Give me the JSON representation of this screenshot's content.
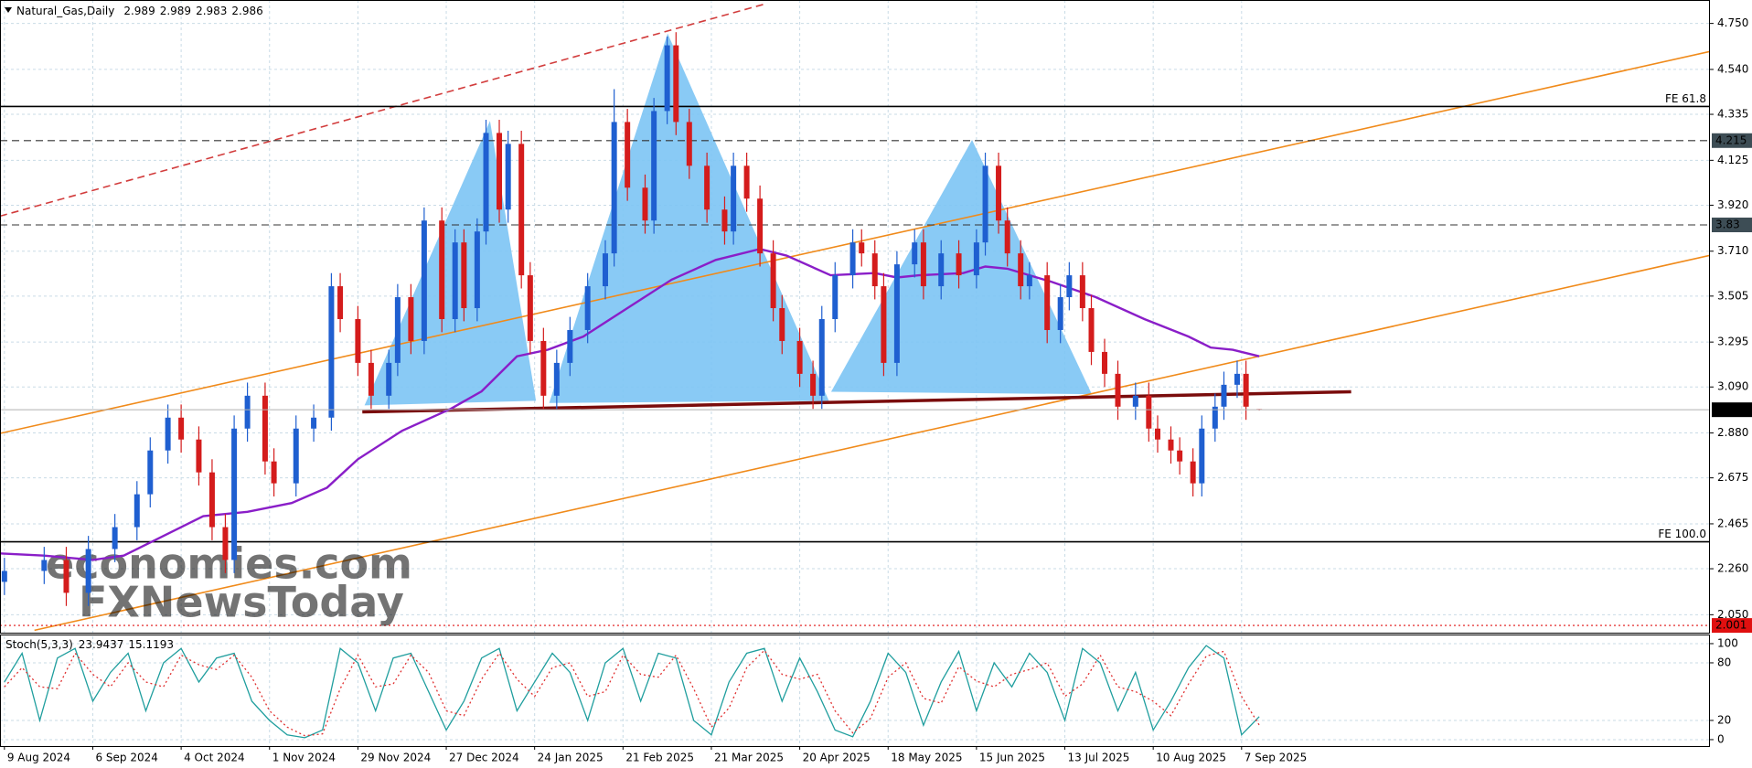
{
  "chart_data": [
    {
      "type": "candlestick",
      "title": "Natural_Gas,Daily",
      "x": [
        0,
        9,
        14,
        19,
        25,
        30,
        33,
        37,
        40,
        44,
        47,
        50,
        52,
        55,
        59,
        61,
        66,
        70,
        74,
        76,
        80,
        83,
        87,
        89,
        92,
        95,
        99,
        102,
        104,
        107,
        109,
        112,
        114,
        117,
        119,
        122,
        125,
        128,
        132,
        136,
        138,
        141,
        145,
        147,
        150,
        152,
        155,
        159,
        163,
        165,
        168,
        171,
        174,
        176,
        180,
        183,
        185,
        188,
        192,
        194,
        197,
        199,
        202,
        206,
        208,
        212,
        216,
        220,
        222,
        225,
        227,
        230,
        232,
        236,
        239,
        241,
        244,
        246,
        249,
        252,
        256,
        259,
        261,
        264,
        266,
        269,
        271,
        274,
        276,
        279,
        281,
        284
      ],
      "open": [
        2.2,
        2.25,
        2.3,
        2.15,
        2.35,
        2.45,
        2.6,
        2.8,
        2.95,
        2.85,
        2.7,
        2.45,
        2.3,
        2.9,
        3.05,
        2.75,
        2.65,
        2.9,
        2.95,
        3.55,
        3.4,
        3.2,
        3.05,
        3.2,
        3.5,
        3.3,
        3.85,
        3.4,
        3.75,
        3.45,
        3.8,
        4.25,
        3.9,
        4.2,
        3.6,
        3.3,
        3.05,
        3.2,
        3.35,
        3.55,
        3.7,
        4.3,
        4.0,
        3.85,
        4.35,
        4.65,
        4.3,
        4.1,
        3.9,
        3.8,
        4.1,
        3.95,
        3.7,
        3.45,
        3.3,
        3.15,
        3.05,
        3.4,
        3.6,
        3.75,
        3.7,
        3.55,
        3.2,
        3.65,
        3.75,
        3.55,
        3.7,
        3.6,
        3.75,
        4.1,
        3.85,
        3.7,
        3.55,
        3.6,
        3.35,
        3.5,
        3.6,
        3.45,
        3.25,
        3.15,
        3.0,
        3.05,
        2.9,
        2.85,
        2.8,
        2.75,
        2.65,
        2.9,
        3.0,
        3.1,
        3.15,
        2.989
      ],
      "high": [
        2.31,
        2.36,
        2.36,
        2.41,
        2.51,
        2.66,
        2.86,
        3.01,
        3.01,
        2.91,
        2.76,
        2.51,
        2.96,
        3.11,
        3.11,
        2.81,
        2.96,
        3.01,
        3.61,
        3.61,
        3.46,
        3.26,
        3.26,
        3.56,
        3.56,
        3.91,
        3.91,
        3.81,
        3.81,
        3.86,
        4.31,
        4.31,
        4.26,
        4.26,
        3.66,
        3.36,
        3.26,
        3.41,
        3.61,
        3.76,
        4.45,
        4.36,
        4.06,
        4.41,
        4.69,
        4.71,
        4.36,
        4.16,
        3.96,
        4.16,
        4.16,
        4.01,
        3.76,
        3.51,
        3.36,
        3.21,
        3.46,
        3.66,
        3.81,
        3.81,
        3.76,
        3.61,
        3.71,
        3.81,
        3.81,
        3.76,
        3.76,
        3.81,
        4.16,
        4.16,
        3.91,
        3.76,
        3.66,
        3.66,
        3.56,
        3.66,
        3.66,
        3.51,
        3.31,
        3.21,
        3.11,
        3.11,
        2.96,
        2.91,
        2.86,
        2.81,
        2.96,
        3.06,
        3.16,
        3.21,
        3.21,
        2.989
      ],
      "low": [
        2.14,
        2.19,
        2.09,
        2.09,
        2.29,
        2.39,
        2.54,
        2.74,
        2.79,
        2.64,
        2.39,
        2.24,
        2.24,
        2.84,
        2.69,
        2.59,
        2.59,
        2.84,
        2.89,
        3.34,
        3.14,
        2.99,
        2.99,
        3.14,
        3.24,
        3.24,
        3.34,
        3.34,
        3.39,
        3.39,
        3.74,
        3.84,
        3.84,
        3.54,
        3.24,
        2.99,
        2.99,
        3.14,
        3.29,
        3.49,
        3.64,
        3.94,
        3.79,
        3.79,
        4.29,
        4.24,
        4.04,
        3.84,
        3.74,
        3.74,
        3.89,
        3.64,
        3.39,
        3.24,
        3.09,
        2.99,
        2.99,
        3.34,
        3.54,
        3.64,
        3.49,
        3.14,
        3.14,
        3.59,
        3.49,
        3.49,
        3.54,
        3.54,
        3.69,
        3.79,
        3.64,
        3.49,
        3.49,
        3.29,
        3.29,
        3.44,
        3.39,
        3.19,
        3.09,
        2.94,
        2.94,
        2.84,
        2.79,
        2.74,
        2.69,
        2.59,
        2.59,
        2.84,
        2.94,
        3.04,
        2.94,
        2.983
      ],
      "close": [
        2.25,
        2.3,
        2.15,
        2.35,
        2.45,
        2.6,
        2.8,
        2.95,
        2.85,
        2.7,
        2.45,
        2.3,
        2.9,
        3.05,
        2.75,
        2.65,
        2.9,
        2.95,
        3.55,
        3.4,
        3.2,
        3.05,
        3.2,
        3.5,
        3.3,
        3.85,
        3.4,
        3.75,
        3.45,
        3.8,
        4.25,
        3.9,
        4.2,
        3.6,
        3.3,
        3.05,
        3.2,
        3.35,
        3.55,
        3.7,
        4.3,
        4.0,
        3.85,
        4.35,
        4.65,
        4.3,
        4.1,
        3.9,
        3.8,
        4.1,
        3.95,
        3.7,
        3.45,
        3.3,
        3.15,
        3.05,
        3.4,
        3.6,
        3.75,
        3.7,
        3.55,
        3.2,
        3.65,
        3.75,
        3.55,
        3.7,
        3.6,
        3.75,
        4.1,
        3.85,
        3.7,
        3.55,
        3.6,
        3.35,
        3.5,
        3.6,
        3.45,
        3.25,
        3.15,
        3.0,
        3.05,
        2.9,
        2.85,
        2.8,
        2.75,
        2.65,
        2.9,
        3.0,
        3.1,
        3.15,
        3.0,
        2.986
      ],
      "up_color": "#1f5fd0",
      "down_color": "#d41c1c",
      "xlim": [
        -1,
        386
      ],
      "ylim": [
        1.968,
        4.857
      ],
      "yticks": [
        {
          "value": 4.75,
          "label": "4.750"
        },
        {
          "value": 4.54,
          "label": "4.540"
        },
        {
          "value": 4.335,
          "label": "4.335"
        },
        {
          "value": 4.125,
          "label": "4.125"
        },
        {
          "value": 3.92,
          "label": "3.920"
        },
        {
          "value": 3.71,
          "label": "3.710"
        },
        {
          "value": 3.505,
          "label": "3.505"
        },
        {
          "value": 3.295,
          "label": "3.295"
        },
        {
          "value": 3.09,
          "label": "3.090"
        },
        {
          "value": 2.88,
          "label": "2.880"
        },
        {
          "value": 2.675,
          "label": "2.675"
        },
        {
          "value": 2.465,
          "label": "2.465"
        },
        {
          "value": 2.26,
          "label": "2.260"
        },
        {
          "value": 2.05,
          "label": "2.050"
        }
      ],
      "grid": true,
      "ma": {
        "color": "#8a1ec8",
        "x": [
          -1,
          9,
          20,
          27,
          35,
          45,
          55,
          65,
          73,
          80,
          90,
          101,
          108,
          116,
          123,
          131,
          141,
          151,
          161,
          171,
          177,
          187,
          197,
          202,
          207,
          217,
          222,
          227,
          237,
          247,
          258,
          268,
          273,
          278,
          284
        ],
        "values": [
          2.33,
          2.32,
          2.3,
          2.32,
          2.4,
          2.5,
          2.52,
          2.56,
          2.63,
          2.76,
          2.89,
          2.99,
          3.07,
          3.23,
          3.26,
          3.32,
          3.45,
          3.58,
          3.67,
          3.72,
          3.69,
          3.6,
          3.61,
          3.59,
          3.6,
          3.61,
          3.64,
          3.63,
          3.57,
          3.5,
          3.4,
          3.32,
          3.27,
          3.26,
          3.23
        ]
      },
      "patterns": [
        {
          "color": "#7cc4f4",
          "x": [
            81.5,
            109.9,
            120.3
          ],
          "values": [
            3.006,
            4.305,
            3.027
          ]
        },
        {
          "color": "#7cc4f4",
          "x": [
            123.3,
            150.1,
            186.6
          ],
          "values": [
            3.017,
            4.704,
            3.027
          ]
        },
        {
          "color": "#7cc4f4",
          "x": [
            187.1,
            219,
            246.1
          ],
          "values": [
            3.068,
            4.218,
            3.057
          ]
        }
      ],
      "lines": [
        {
          "color": "#f08a1a",
          "style": "solid",
          "x": [
            -1,
            386
          ],
          "values": [
            2.878,
            4.622
          ]
        },
        {
          "color": "#f08a1a",
          "style": "solid",
          "x": [
            6.8,
            386
          ],
          "values": [
            1.979,
            3.691
          ]
        },
        {
          "color": "#d23c3c",
          "style": "dashed",
          "x": [
            -1,
            172.7
          ],
          "values": [
            3.87,
            4.842
          ]
        },
        {
          "color": "#7a0c0c",
          "style": "thick",
          "x": [
            81,
            304.8
          ],
          "values": [
            2.976,
            3.068
          ]
        }
      ],
      "levels": [
        {
          "value": 4.371,
          "text": "FE 61.8",
          "color": "#000000",
          "style": "solid"
        },
        {
          "value": 2.383,
          "text": "FE 100.0",
          "color": "#000000",
          "style": "solid"
        },
        {
          "value": 4.215,
          "color": "#333333",
          "style": "dashed",
          "box": "#3d4d55"
        },
        {
          "value": 3.83,
          "color": "#333333",
          "style": "dashed",
          "box": "#3d4d55"
        },
        {
          "value": 2.001,
          "color": "#e01010",
          "style": "dotted",
          "box": "#e01010"
        }
      ],
      "watermark": [
        "economies.com",
        "FXNewsToday"
      ]
    },
    {
      "type": "line",
      "title": "Stoch(5,3,3)",
      "x": [
        0,
        4,
        8,
        12,
        16,
        20,
        24,
        28,
        32,
        36,
        40,
        44,
        48,
        52,
        56,
        60,
        64,
        68,
        72,
        76,
        80,
        84,
        88,
        92,
        96,
        100,
        104,
        108,
        112,
        116,
        120,
        124,
        128,
        132,
        136,
        140,
        144,
        148,
        152,
        156,
        160,
        164,
        168,
        172,
        176,
        180,
        184,
        188,
        192,
        196,
        200,
        204,
        208,
        212,
        216,
        220,
        224,
        228,
        232,
        236,
        240,
        244,
        248,
        252,
        256,
        260,
        264,
        268,
        272,
        276,
        280,
        284
      ],
      "series": [
        {
          "color": "#1f9e9e",
          "style": "solid",
          "values": [
            60,
            90,
            20,
            85,
            95,
            40,
            70,
            90,
            30,
            80,
            95,
            60,
            85,
            90,
            40,
            20,
            5,
            2,
            10,
            95,
            80,
            30,
            85,
            90,
            50,
            10,
            40,
            85,
            95,
            30,
            60,
            90,
            70,
            20,
            80,
            95,
            40,
            90,
            85,
            20,
            5,
            60,
            90,
            95,
            40,
            85,
            50,
            10,
            3,
            40,
            90,
            70,
            15,
            60,
            92,
            30,
            80,
            55,
            90,
            70,
            20,
            95,
            80,
            30,
            70,
            10,
            40,
            75,
            98,
            85,
            5,
            23.9437
          ]
        },
        {
          "color": "#e03030",
          "style": "dotted",
          "values": [
            55,
            75,
            55,
            53,
            90,
            68,
            55,
            80,
            60,
            55,
            88,
            78,
            73,
            88,
            65,
            30,
            13,
            4,
            6,
            53,
            88,
            55,
            58,
            88,
            70,
            30,
            25,
            63,
            90,
            63,
            45,
            75,
            80,
            45,
            50,
            88,
            68,
            65,
            88,
            53,
            13,
            33,
            75,
            93,
            68,
            63,
            68,
            30,
            7,
            22,
            65,
            80,
            43,
            38,
            76,
            61,
            55,
            68,
            73,
            80,
            45,
            58,
            88,
            55,
            50,
            40,
            25,
            58,
            87,
            92,
            45,
            15.1193
          ]
        }
      ],
      "xlim": [
        -1,
        386
      ],
      "ylim": [
        -6.7,
        109.5
      ],
      "yticks": [
        100,
        80,
        20,
        0
      ],
      "xticks": [
        {
          "value": 0,
          "label": "9 Aug 2024"
        },
        {
          "value": 20,
          "label": "6 Sep 2024"
        },
        {
          "value": 40,
          "label": "4 Oct 2024"
        },
        {
          "value": 60,
          "label": "1 Nov 2024"
        },
        {
          "value": 80,
          "label": "29 Nov 2024"
        },
        {
          "value": 100,
          "label": "27 Dec 2024"
        },
        {
          "value": 120,
          "label": "24 Jan 2025"
        },
        {
          "value": 140,
          "label": "21 Feb 2025"
        },
        {
          "value": 160,
          "label": "21 Mar 2025"
        },
        {
          "value": 180,
          "label": "20 Apr 2025"
        },
        {
          "value": 200,
          "label": "18 May 2025"
        },
        {
          "value": 220,
          "label": "15 Jun 2025"
        },
        {
          "value": 240,
          "label": "13 Jul 2025"
        },
        {
          "value": 260,
          "label": "10 Aug 2025"
        },
        {
          "value": 280,
          "label": "7 Sep 2025"
        }
      ],
      "grid": true
    }
  ]
}
